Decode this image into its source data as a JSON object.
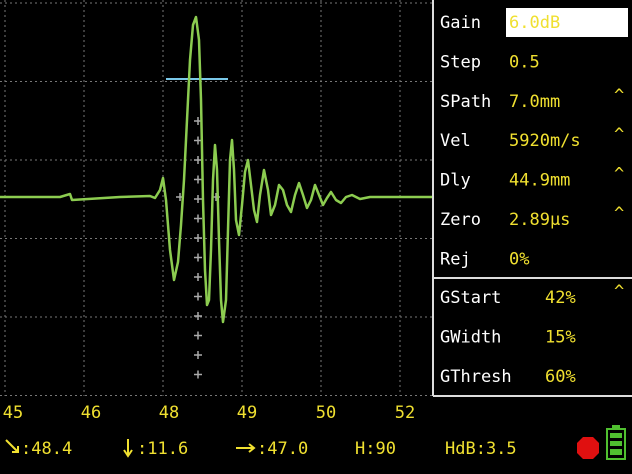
{
  "screen": {
    "parameters": [
      {
        "label": "Gain",
        "value": "6.0dB"
      },
      {
        "label": "Step",
        "value": "0.5"
      },
      {
        "label": "SPath",
        "value": "7.0mm",
        "indicator": "^"
      },
      {
        "label": "Vel",
        "value": "5920m/s",
        "indicator": "^"
      },
      {
        "label": "Dly",
        "value": "44.9mm",
        "indicator": "^"
      },
      {
        "label": "Zero",
        "value": "2.89µs",
        "indicator": "^"
      },
      {
        "label": "Rej",
        "value": "0%"
      }
    ],
    "gate_parameters": [
      {
        "label": "GStart",
        "value": "42%",
        "indicator": "^"
      },
      {
        "label": "GWidth",
        "value": "15%"
      },
      {
        "label": "GThresh",
        "value": "60%"
      }
    ],
    "x_axis_labels": [
      "45",
      "46",
      "48",
      "49",
      "50",
      "52"
    ],
    "status": [
      ":48.4",
      ":11.6",
      ":47.0",
      "H:90",
      "HdB:3.5"
    ]
  }
}
